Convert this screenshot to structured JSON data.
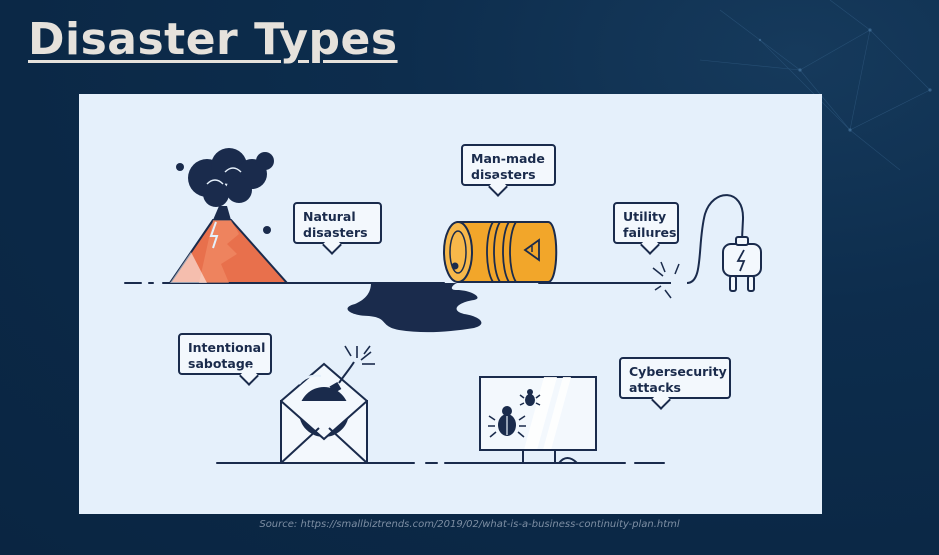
{
  "slide": {
    "title": "Disaster Types",
    "source": "Source: https://smallbiztrends.com/2019/02/what-is-a-business-continuity-plan.html"
  },
  "labels": {
    "natural": [
      "Natural",
      "disasters"
    ],
    "man_made": [
      "Man-made",
      "disasters"
    ],
    "utility": [
      "Utility",
      "failures"
    ],
    "sabotage": [
      "Intentional",
      "sabotage"
    ],
    "cyber": [
      "Cybersecurity",
      "attacks"
    ]
  },
  "icons": [
    "volcano-icon",
    "barrel-icon",
    "oil-spill-icon",
    "plug-icon",
    "bomb-envelope-icon",
    "computer-bug-icon"
  ],
  "colors": {
    "background": "#0b2846",
    "panel": "#e5f0fb",
    "ink": "#1a2b4c",
    "volcano": "#e8704c",
    "barrel": "#f2a62a",
    "title": "#e6e2dc"
  }
}
